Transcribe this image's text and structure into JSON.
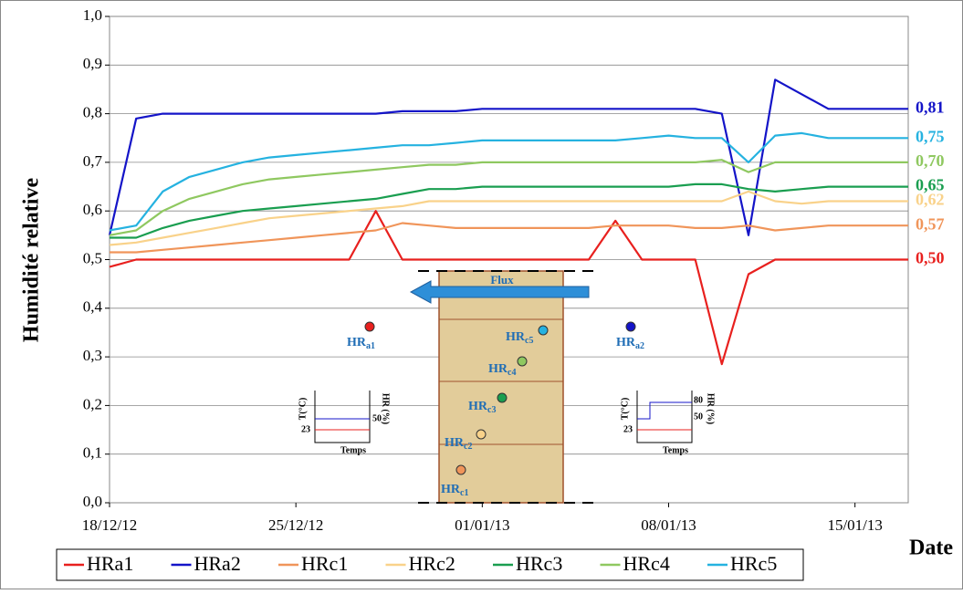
{
  "chart_data": {
    "type": "line",
    "y_label": "Humidité relative",
    "x_label": "Date",
    "x": [
      "2012-12-18",
      "2012-12-19",
      "2012-12-20",
      "2012-12-21",
      "2012-12-22",
      "2012-12-23",
      "2012-12-24",
      "2012-12-25",
      "2012-12-26",
      "2012-12-27",
      "2012-12-28",
      "2012-12-29",
      "2012-12-30",
      "2012-12-31",
      "2013-01-01",
      "2013-01-02",
      "2013-01-03",
      "2013-01-04",
      "2013-01-05",
      "2013-01-06",
      "2013-01-07",
      "2013-01-08",
      "2013-01-09",
      "2013-01-10",
      "2013-01-11",
      "2013-01-12",
      "2013-01-13",
      "2013-01-14",
      "2013-01-15",
      "2013-01-16",
      "2013-01-17"
    ],
    "xlim": [
      "2012-12-18",
      "2013-01-17"
    ],
    "xticks": [
      {
        "value": "2012-12-18",
        "label": "18/12/12"
      },
      {
        "value": "2012-12-25",
        "label": "25/12/12"
      },
      {
        "value": "2013-01-01",
        "label": "01/01/13"
      },
      {
        "value": "2013-01-08",
        "label": "08/01/13"
      },
      {
        "value": "2013-01-15",
        "label": "15/01/13"
      }
    ],
    "ylim": [
      0,
      1
    ],
    "yticks": [
      {
        "value": 0,
        "label": "0,0"
      },
      {
        "value": 0.1,
        "label": "0,1"
      },
      {
        "value": 0.2,
        "label": "0,2"
      },
      {
        "value": 0.3,
        "label": "0,3"
      },
      {
        "value": 0.4,
        "label": "0,4"
      },
      {
        "value": 0.5,
        "label": "0,5"
      },
      {
        "value": 0.6,
        "label": "0,6"
      },
      {
        "value": 0.7,
        "label": "0,7"
      },
      {
        "value": 0.8,
        "label": "0,8"
      },
      {
        "value": 0.9,
        "label": "0,9"
      },
      {
        "value": 1,
        "label": "1,0"
      }
    ],
    "grid": true,
    "series": [
      {
        "name": "HRa1",
        "color": "#e8201e",
        "end_label": "0,50",
        "values": [
          0.485,
          0.5,
          0.5,
          0.5,
          0.5,
          0.5,
          0.5,
          0.5,
          0.5,
          0.5,
          0.6,
          0.5,
          0.5,
          0.5,
          0.5,
          0.5,
          0.5,
          0.5,
          0.5,
          0.58,
          0.5,
          0.5,
          0.5,
          0.285,
          0.47,
          0.5,
          0.5,
          0.5,
          0.5,
          0.5,
          0.5
        ]
      },
      {
        "name": "HRa2",
        "color": "#1414c8",
        "end_label": "0,81",
        "values": [
          0.55,
          0.79,
          0.8,
          0.8,
          0.8,
          0.8,
          0.8,
          0.8,
          0.8,
          0.8,
          0.8,
          0.805,
          0.805,
          0.805,
          0.81,
          0.81,
          0.81,
          0.81,
          0.81,
          0.81,
          0.81,
          0.81,
          0.81,
          0.8,
          0.55,
          0.87,
          0.84,
          0.81,
          0.81,
          0.81,
          0.81
        ]
      },
      {
        "name": "HRc1",
        "color": "#f0955a",
        "end_label": "0,57",
        "values": [
          0.515,
          0.515,
          0.52,
          0.525,
          0.53,
          0.535,
          0.54,
          0.545,
          0.55,
          0.555,
          0.56,
          0.575,
          0.57,
          0.565,
          0.565,
          0.565,
          0.565,
          0.565,
          0.565,
          0.57,
          0.57,
          0.57,
          0.565,
          0.565,
          0.57,
          0.56,
          0.565,
          0.57,
          0.57,
          0.57,
          0.57
        ]
      },
      {
        "name": "HRc2",
        "color": "#f9d28a",
        "end_label": "0,62",
        "values": [
          0.53,
          0.535,
          0.545,
          0.555,
          0.565,
          0.575,
          0.585,
          0.59,
          0.595,
          0.6,
          0.605,
          0.61,
          0.62,
          0.62,
          0.62,
          0.62,
          0.62,
          0.62,
          0.62,
          0.62,
          0.62,
          0.62,
          0.62,
          0.62,
          0.64,
          0.62,
          0.615,
          0.62,
          0.62,
          0.62,
          0.62
        ]
      },
      {
        "name": "HRc3",
        "color": "#1a9e50",
        "end_label": "0,65",
        "values": [
          0.545,
          0.545,
          0.565,
          0.58,
          0.59,
          0.6,
          0.605,
          0.61,
          0.615,
          0.62,
          0.625,
          0.635,
          0.645,
          0.645,
          0.65,
          0.65,
          0.65,
          0.65,
          0.65,
          0.65,
          0.65,
          0.65,
          0.655,
          0.655,
          0.645,
          0.64,
          0.645,
          0.65,
          0.65,
          0.65,
          0.65
        ]
      },
      {
        "name": "HRc4",
        "color": "#8fc860",
        "end_label": "0,70",
        "values": [
          0.55,
          0.56,
          0.6,
          0.625,
          0.64,
          0.655,
          0.665,
          0.67,
          0.675,
          0.68,
          0.685,
          0.69,
          0.695,
          0.695,
          0.7,
          0.7,
          0.7,
          0.7,
          0.7,
          0.7,
          0.7,
          0.7,
          0.7,
          0.705,
          0.68,
          0.7,
          0.7,
          0.7,
          0.7,
          0.7,
          0.7
        ]
      },
      {
        "name": "HRc5",
        "color": "#25b2e0",
        "end_label": "0,75",
        "values": [
          0.56,
          0.57,
          0.64,
          0.67,
          0.685,
          0.7,
          0.71,
          0.715,
          0.72,
          0.725,
          0.73,
          0.735,
          0.735,
          0.74,
          0.745,
          0.745,
          0.745,
          0.745,
          0.745,
          0.745,
          0.75,
          0.755,
          0.75,
          0.75,
          0.7,
          0.755,
          0.76,
          0.75,
          0.75,
          0.75,
          0.75
        ]
      }
    ],
    "inset": {
      "flux": "Flux",
      "sensors": [
        {
          "base": "HR",
          "sub": "a1"
        },
        {
          "base": "HR",
          "sub": "a2"
        },
        {
          "base": "HR",
          "sub": "c1"
        },
        {
          "base": "HR",
          "sub": "c2"
        },
        {
          "base": "HR",
          "sub": "c3"
        },
        {
          "base": "HR",
          "sub": "c4"
        },
        {
          "base": "HR",
          "sub": "c5"
        }
      ],
      "left": {
        "t_label": "T(°C)",
        "hr_label": "HR (%)",
        "time": "Temps",
        "t": "23",
        "hr": "50"
      },
      "right": {
        "t_label": "T(°C)",
        "hr_label": "HR (%)",
        "time": "Temps",
        "t": "23",
        "hr_low": "50",
        "hr_high": "80"
      }
    }
  }
}
